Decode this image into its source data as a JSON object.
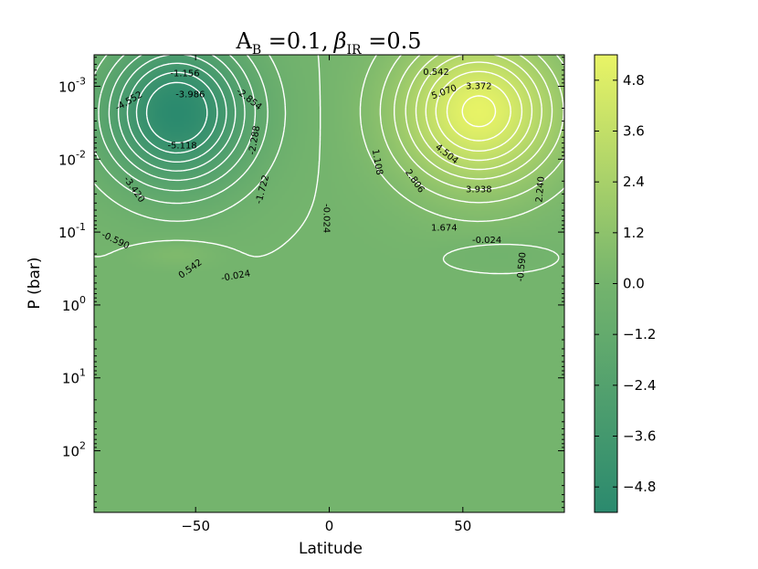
{
  "chart_data": {
    "type": "heatmap",
    "subtype": "filled-contour",
    "title": {
      "text": "A_B =0.1, β_IR =0.5",
      "A": "A",
      "A_sub": "B",
      "A_eq": " =0.1,",
      "beta": "β",
      "beta_sub": "IR",
      "beta_eq": " =0.5"
    },
    "xlabel": "Latitude",
    "ylabel": "P (bar)",
    "xlim": [
      -88,
      88
    ],
    "ylim_bar": [
      0.00037,
      700
    ],
    "y_scale": "log",
    "y_inverted": true,
    "grid": false,
    "x_ticks": [
      {
        "value": -50,
        "label": "−50"
      },
      {
        "value": 0,
        "label": "0"
      },
      {
        "value": 50,
        "label": "50"
      }
    ],
    "y_ticks": [
      {
        "value": 0.001,
        "base": "10",
        "exp": "-3"
      },
      {
        "value": 0.01,
        "base": "10",
        "exp": "-2"
      },
      {
        "value": 0.1,
        "base": "10",
        "exp": "-1"
      },
      {
        "value": 1,
        "base": "10",
        "exp": "0"
      },
      {
        "value": 10,
        "base": "10",
        "exp": "1"
      },
      {
        "value": 100,
        "base": "10",
        "exp": "2"
      }
    ],
    "colorbar": {
      "range": [
        -5.4,
        5.4
      ],
      "ticks": [
        {
          "value": 4.8,
          "label": "4.8"
        },
        {
          "value": 3.6,
          "label": "3.6"
        },
        {
          "value": 2.4,
          "label": "2.4"
        },
        {
          "value": 1.2,
          "label": "1.2"
        },
        {
          "value": 0.0,
          "label": "0.0"
        },
        {
          "value": -1.2,
          "label": "−1.2"
        },
        {
          "value": -2.4,
          "label": "−2.4"
        },
        {
          "value": -3.6,
          "label": "−3.6"
        },
        {
          "value": -4.8,
          "label": "−4.8"
        }
      ],
      "colors": [
        "#2b8a6e",
        "#74b46d",
        "#e9f466"
      ]
    },
    "cells": [
      {
        "id": "cell-north",
        "lat": 56,
        "p": 0.0022,
        "peak": 5.3,
        "wlat": 28,
        "wlogp": 0.95
      },
      {
        "id": "cell-south",
        "lat": -57,
        "p": 0.0023,
        "peak": -5.4,
        "wlat": 26,
        "wlogp": 0.95
      },
      {
        "id": "lobe-south-positive",
        "lat": -57,
        "p": 0.2,
        "peak": 0.6,
        "wlat": 14,
        "wlogp": 0.18
      },
      {
        "id": "lobe-north-negative",
        "lat": 62,
        "p": 0.2,
        "peak": -0.3,
        "wlat": 18,
        "wlogp": 0.2
      }
    ],
    "contour_labels": [
      {
        "text": "-1.156",
        "lat": -54,
        "p": 0.00067,
        "angle": 0
      },
      {
        "text": "-4.552",
        "lat": -75,
        "p": 0.0016,
        "angle": -30
      },
      {
        "text": "-3.986",
        "lat": -52,
        "p": 0.0013,
        "angle": 0
      },
      {
        "text": "-2.854",
        "lat": -30,
        "p": 0.0015,
        "angle": 38
      },
      {
        "text": "-2.288",
        "lat": -28,
        "p": 0.0055,
        "angle": -80
      },
      {
        "text": "-5.118",
        "lat": -55,
        "p": 0.0065,
        "angle": 0
      },
      {
        "text": "-1.722",
        "lat": -25,
        "p": 0.026,
        "angle": -75
      },
      {
        "text": "-3.420",
        "lat": -73,
        "p": 0.026,
        "angle": 55
      },
      {
        "text": "-0.024",
        "lat": -1,
        "p": 0.065,
        "angle": 90
      },
      {
        "text": "-0.590",
        "lat": -80,
        "p": 0.13,
        "angle": 25
      },
      {
        "text": "0.542",
        "lat": -52,
        "p": 0.32,
        "angle": -35
      },
      {
        "text": "-0.024",
        "lat": -35,
        "p": 0.4,
        "angle": -10
      },
      {
        "text": "0.542",
        "lat": 40,
        "p": 0.00064,
        "angle": 0
      },
      {
        "text": "5.070",
        "lat": 43,
        "p": 0.0012,
        "angle": -20
      },
      {
        "text": "3.372",
        "lat": 56,
        "p": 0.001,
        "angle": 0
      },
      {
        "text": "4.504",
        "lat": 44,
        "p": 0.0085,
        "angle": 38
      },
      {
        "text": "1.108",
        "lat": 18,
        "p": 0.011,
        "angle": 80
      },
      {
        "text": "2.806",
        "lat": 32,
        "p": 0.02,
        "angle": 55
      },
      {
        "text": "3.938",
        "lat": 56,
        "p": 0.026,
        "angle": 0
      },
      {
        "text": "2.240",
        "lat": 79,
        "p": 0.026,
        "angle": -85
      },
      {
        "text": "1.674",
        "lat": 43,
        "p": 0.087,
        "angle": 0
      },
      {
        "text": "-0.024",
        "lat": 59,
        "p": 0.13,
        "angle": 0
      },
      {
        "text": "-0.590",
        "lat": 72,
        "p": 0.3,
        "angle": -85
      }
    ]
  }
}
